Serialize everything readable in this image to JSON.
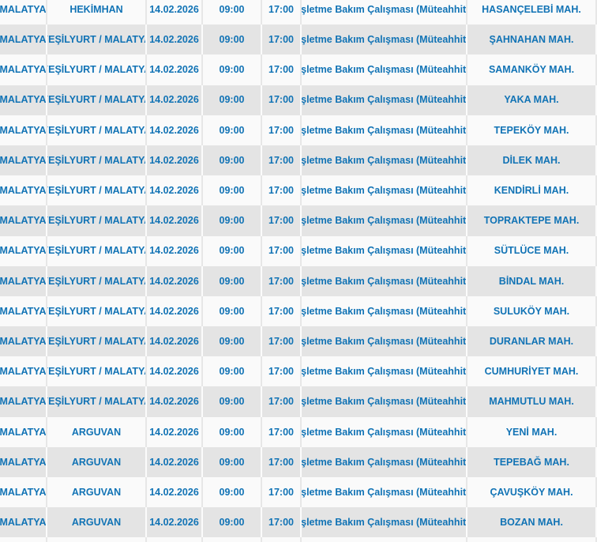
{
  "colors": {
    "text_blue": "#1173b5",
    "row_light_bg": "#fafafa",
    "row_dark_bg": "#e4e4e4"
  },
  "table": {
    "column_keys": [
      "city",
      "district",
      "date",
      "start_time",
      "end_time",
      "reason",
      "neighborhood"
    ],
    "rows": [
      {
        "city": "MALATYA",
        "district": "HEKİMHAN",
        "date": "14.02.2026",
        "start_time": "09:00",
        "end_time": "17:00",
        "reason": "İşletme Bakım Çalışması (Müteahhit)",
        "neighborhood": "HASANÇELEBİ MAH."
      },
      {
        "city": "MALATYA",
        "district": "YEŞİLYURT / MALATYA",
        "date": "14.02.2026",
        "start_time": "09:00",
        "end_time": "17:00",
        "reason": "İşletme Bakım Çalışması (Müteahhit)",
        "neighborhood": "ŞAHNAHAN MAH."
      },
      {
        "city": "MALATYA",
        "district": "YEŞİLYURT / MALATYA",
        "date": "14.02.2026",
        "start_time": "09:00",
        "end_time": "17:00",
        "reason": "İşletme Bakım Çalışması (Müteahhit)",
        "neighborhood": "SAMANKÖY MAH."
      },
      {
        "city": "MALATYA",
        "district": "YEŞİLYURT / MALATYA",
        "date": "14.02.2026",
        "start_time": "09:00",
        "end_time": "17:00",
        "reason": "İşletme Bakım Çalışması (Müteahhit)",
        "neighborhood": "YAKA MAH."
      },
      {
        "city": "MALATYA",
        "district": "YEŞİLYURT / MALATYA",
        "date": "14.02.2026",
        "start_time": "09:00",
        "end_time": "17:00",
        "reason": "İşletme Bakım Çalışması (Müteahhit)",
        "neighborhood": "TEPEKÖY MAH."
      },
      {
        "city": "MALATYA",
        "district": "YEŞİLYURT / MALATYA",
        "date": "14.02.2026",
        "start_time": "09:00",
        "end_time": "17:00",
        "reason": "İşletme Bakım Çalışması (Müteahhit)",
        "neighborhood": "DİLEK MAH."
      },
      {
        "city": "MALATYA",
        "district": "YEŞİLYURT / MALATYA",
        "date": "14.02.2026",
        "start_time": "09:00",
        "end_time": "17:00",
        "reason": "İşletme Bakım Çalışması (Müteahhit)",
        "neighborhood": "KENDİRLİ MAH."
      },
      {
        "city": "MALATYA",
        "district": "YEŞİLYURT / MALATYA",
        "date": "14.02.2026",
        "start_time": "09:00",
        "end_time": "17:00",
        "reason": "İşletme Bakım Çalışması (Müteahhit)",
        "neighborhood": "TOPRAKTEPE MAH."
      },
      {
        "city": "MALATYA",
        "district": "YEŞİLYURT / MALATYA",
        "date": "14.02.2026",
        "start_time": "09:00",
        "end_time": "17:00",
        "reason": "İşletme Bakım Çalışması (Müteahhit)",
        "neighborhood": "SÜTLÜCE MAH."
      },
      {
        "city": "MALATYA",
        "district": "YEŞİLYURT / MALATYA",
        "date": "14.02.2026",
        "start_time": "09:00",
        "end_time": "17:00",
        "reason": "İşletme Bakım Çalışması (Müteahhit)",
        "neighborhood": "BİNDAL MAH."
      },
      {
        "city": "MALATYA",
        "district": "YEŞİLYURT / MALATYA",
        "date": "14.02.2026",
        "start_time": "09:00",
        "end_time": "17:00",
        "reason": "İşletme Bakım Çalışması (Müteahhit)",
        "neighborhood": "SULUKÖY MAH."
      },
      {
        "city": "MALATYA",
        "district": "YEŞİLYURT / MALATYA",
        "date": "14.02.2026",
        "start_time": "09:00",
        "end_time": "17:00",
        "reason": "İşletme Bakım Çalışması (Müteahhit)",
        "neighborhood": "DURANLAR MAH."
      },
      {
        "city": "MALATYA",
        "district": "YEŞİLYURT / MALATYA",
        "date": "14.02.2026",
        "start_time": "09:00",
        "end_time": "17:00",
        "reason": "İşletme Bakım Çalışması (Müteahhit)",
        "neighborhood": "CUMHURİYET MAH."
      },
      {
        "city": "MALATYA",
        "district": "YEŞİLYURT / MALATYA",
        "date": "14.02.2026",
        "start_time": "09:00",
        "end_time": "17:00",
        "reason": "İşletme Bakım Çalışması (Müteahhit)",
        "neighborhood": "MAHMUTLU MAH."
      },
      {
        "city": "MALATYA",
        "district": "ARGUVAN",
        "date": "14.02.2026",
        "start_time": "09:00",
        "end_time": "17:00",
        "reason": "İşletme Bakım Çalışması (Müteahhit)",
        "neighborhood": "YENİ MAH."
      },
      {
        "city": "MALATYA",
        "district": "ARGUVAN",
        "date": "14.02.2026",
        "start_time": "09:00",
        "end_time": "17:00",
        "reason": "İşletme Bakım Çalışması (Müteahhit)",
        "neighborhood": "TEPEBAĞ MAH."
      },
      {
        "city": "MALATYA",
        "district": "ARGUVAN",
        "date": "14.02.2026",
        "start_time": "09:00",
        "end_time": "17:00",
        "reason": "İşletme Bakım Çalışması (Müteahhit)",
        "neighborhood": "ÇAVUŞKÖY MAH."
      },
      {
        "city": "MALATYA",
        "district": "ARGUVAN",
        "date": "14.02.2026",
        "start_time": "09:00",
        "end_time": "17:00",
        "reason": "İşletme Bakım Çalışması (Müteahhit)",
        "neighborhood": "BOZAN MAH."
      }
    ]
  }
}
